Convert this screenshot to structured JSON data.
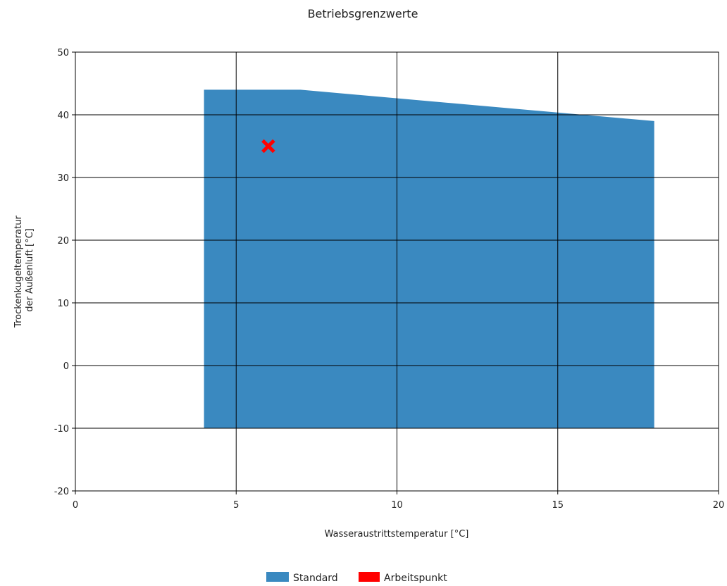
{
  "chart_data": {
    "type": "area",
    "title": "Betriebsgrenzwerte",
    "xlabel": "Wasseraustrittstemperatur [°C]",
    "ylabel": [
      "Trockenkugeltemperatur",
      "der Außenluft [°C]"
    ],
    "xlim": [
      0,
      20
    ],
    "ylim": [
      -20,
      50
    ],
    "x_ticks": [
      0,
      5,
      10,
      15,
      20
    ],
    "y_ticks": [
      -20,
      -10,
      0,
      10,
      20,
      30,
      40,
      50
    ],
    "grid": true,
    "legend_position": "bottom-center",
    "series": [
      {
        "name": "Standard",
        "kind": "polygon",
        "color": "#3a89c0",
        "points": [
          [
            4,
            44
          ],
          [
            7,
            44
          ],
          [
            18,
            39
          ],
          [
            18,
            -10
          ],
          [
            4,
            -10
          ]
        ]
      },
      {
        "name": "Arbeitspunkt",
        "kind": "marker",
        "marker": "x",
        "color": "#ff0000",
        "points": [
          [
            6,
            35
          ]
        ]
      }
    ]
  }
}
